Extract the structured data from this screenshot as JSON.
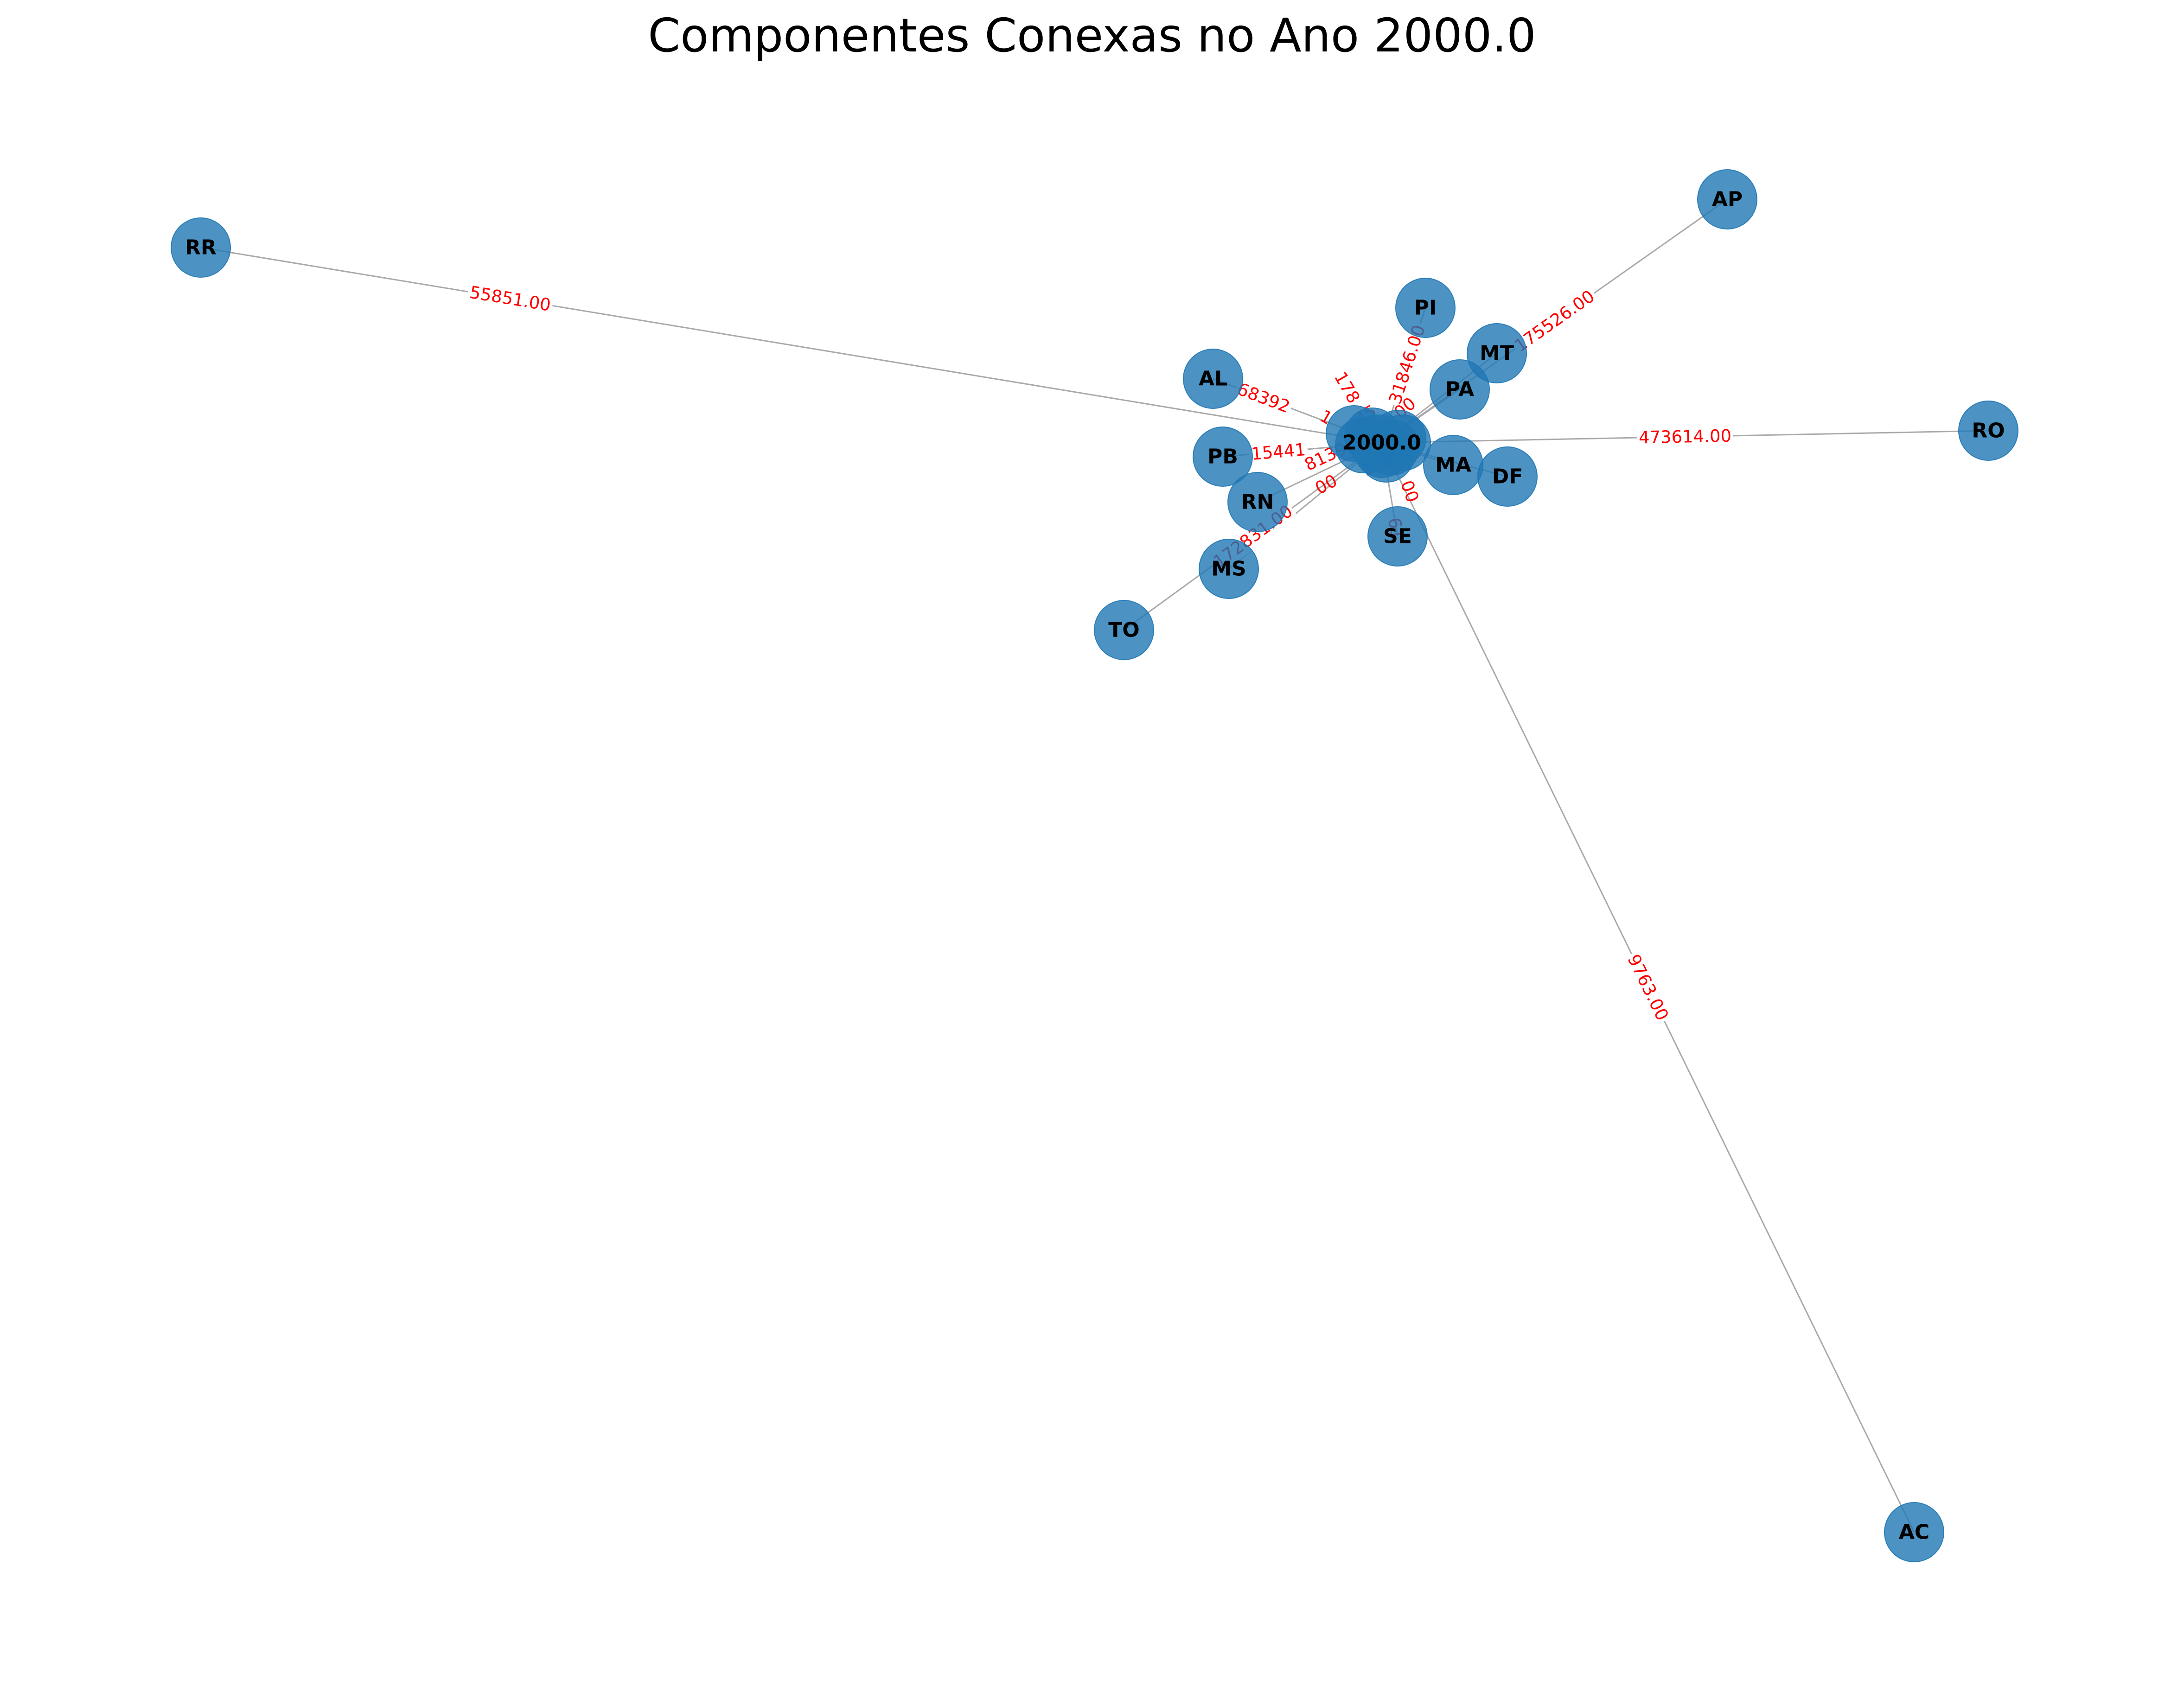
{
  "title": "Componentes Conexas no Ano 2000.0",
  "colors": {
    "node": "#1f77b4",
    "edge": "#a9a9a9",
    "edge_label": "#ff0000",
    "node_label": "#000000"
  },
  "hub": {
    "id": "2000.0"
  },
  "nodes": [
    {
      "id": "RR"
    },
    {
      "id": "AP"
    },
    {
      "id": "PI"
    },
    {
      "id": "MT"
    },
    {
      "id": "AL"
    },
    {
      "id": "PA"
    },
    {
      "id": "RO"
    },
    {
      "id": "PB"
    },
    {
      "id": "MA"
    },
    {
      "id": "DF"
    },
    {
      "id": "RN"
    },
    {
      "id": "SE"
    },
    {
      "id": "MS"
    },
    {
      "id": "TO"
    },
    {
      "id": "AC"
    }
  ],
  "edges": [
    {
      "source": "RR",
      "target": "2000.0",
      "label": "55851.00"
    },
    {
      "source": "AP",
      "target": "2000.0",
      "label": "175526.00"
    },
    {
      "source": "RO",
      "target": "2000.0",
      "label": "473614.00"
    },
    {
      "source": "AC",
      "target": "2000.0",
      "label": "9763.00"
    },
    {
      "source": "TO",
      "target": "2000.0",
      "label": "172831.00"
    },
    {
      "source": "PI",
      "target": "2000.0",
      "label": "31846.00"
    },
    {
      "source": "AL",
      "target": "2000.0",
      "label": "68392"
    },
    {
      "source": "PB",
      "target": "2000.0",
      "label": "15441"
    }
  ],
  "fragment_labels": [
    "178",
    "45",
    "813951",
    "00",
    "00",
    "61",
    "178",
    "00",
    "1"
  ]
}
